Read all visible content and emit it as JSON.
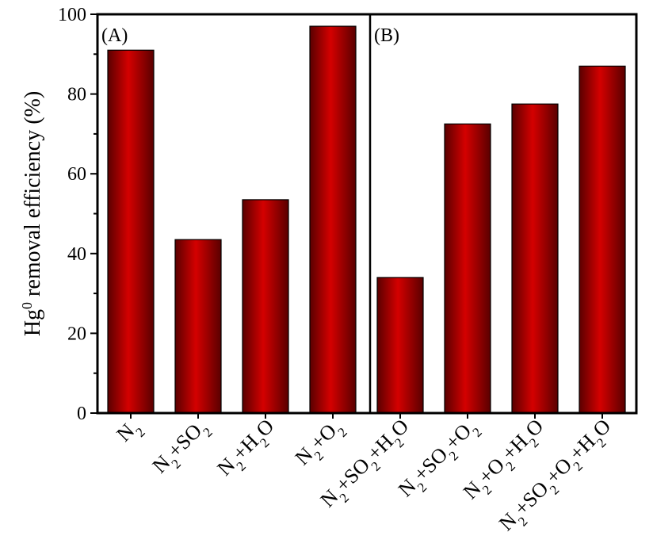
{
  "chart_data": {
    "type": "bar",
    "ylabel": "Hg0 removal efficiency (%)",
    "ylabel_parts": {
      "base": "Hg",
      "sup": "0",
      "rest": " removal efficiency (%)"
    },
    "ylim": [
      0,
      100
    ],
    "yticks": [
      "0",
      "20",
      "40",
      "60",
      "80",
      "100"
    ],
    "grid": false,
    "bar_color": "#d40000",
    "bar_color_dark": "#5a0000",
    "panels": [
      {
        "label": "(A)",
        "categories": [
          "N2",
          "N2+SO2",
          "N2+H2O",
          "N2+O2"
        ],
        "values": [
          91,
          43.5,
          53.5,
          97
        ]
      },
      {
        "label": "(B)",
        "categories": [
          "N2+SO2+H2O",
          "N2+SO2+O2",
          "N2+O2+H2O",
          "N2+SO2+O2+H2O"
        ],
        "values": [
          34,
          72.5,
          77.5,
          87
        ]
      }
    ]
  }
}
